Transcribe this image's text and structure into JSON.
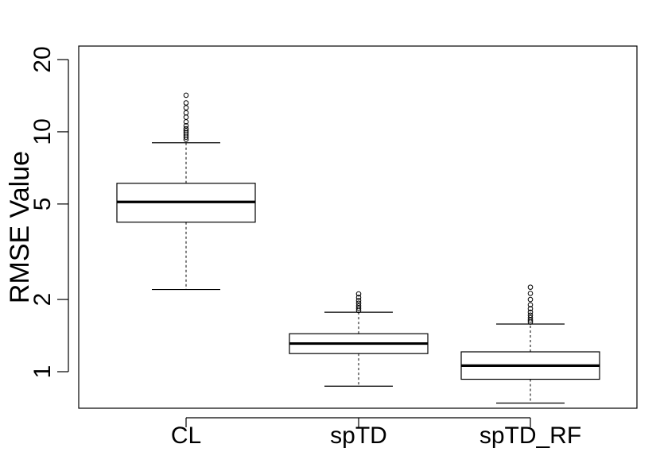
{
  "chart_data": {
    "type": "boxplot",
    "title": "",
    "xlabel": "",
    "ylabel": "RMSE  Value",
    "yscale": "log",
    "ylim": [
      0.8,
      24
    ],
    "y_ticks": [
      1,
      2,
      5,
      10,
      20
    ],
    "y_tick_labels": [
      "1",
      "2",
      "5",
      "10",
      "20"
    ],
    "grid": false,
    "categories": [
      "CL",
      "spTD",
      "spTD_RF"
    ],
    "boxes": [
      {
        "name": "CL",
        "whisker_low": 2.2,
        "q1": 4.2,
        "median": 5.1,
        "q3": 6.1,
        "whisker_high": 9.0,
        "outliers": [
          9.3,
          9.5,
          9.7,
          9.9,
          10.1,
          10.3,
          10.6,
          11.0,
          11.5,
          12.0,
          12.6,
          13.2,
          14.2
        ]
      },
      {
        "name": "spTD",
        "whisker_low": 0.87,
        "q1": 1.19,
        "median": 1.31,
        "q3": 1.44,
        "whisker_high": 1.77,
        "outliers": [
          1.8,
          1.84,
          1.88,
          1.93,
          1.98,
          2.04,
          2.11
        ]
      },
      {
        "name": "spTD_RF",
        "whisker_low": 0.74,
        "q1": 0.93,
        "median": 1.06,
        "q3": 1.21,
        "whisker_high": 1.58,
        "outliers": [
          1.61,
          1.64,
          1.68,
          1.72,
          1.77,
          1.83,
          1.9,
          2.0,
          2.12,
          2.25
        ]
      }
    ]
  }
}
